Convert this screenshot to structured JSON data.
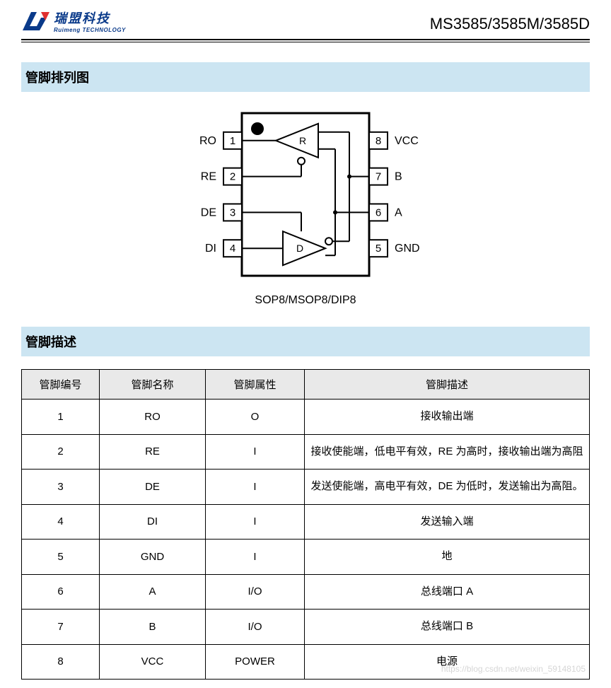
{
  "header": {
    "logo_cn": "瑞盟科技",
    "logo_en": "Ruimeng TECHNOLOGY",
    "part_number": "MS3585/3585M/3585D"
  },
  "sections": {
    "pinout_title": "管脚排列图",
    "pindesc_title": "管脚描述"
  },
  "diagram": {
    "caption": "SOP8/MSOP8/DIP8",
    "left_pins": [
      {
        "num": "1",
        "label": "RO"
      },
      {
        "num": "2",
        "label": "RE"
      },
      {
        "num": "3",
        "label": "DE"
      },
      {
        "num": "4",
        "label": "DI"
      }
    ],
    "right_pins": [
      {
        "num": "8",
        "label": "VCC"
      },
      {
        "num": "7",
        "label": "B"
      },
      {
        "num": "6",
        "label": "A"
      },
      {
        "num": "5",
        "label": "GND"
      }
    ],
    "r_label": "R",
    "d_label": "D",
    "colors": {
      "stroke": "#000000",
      "fill": "#ffffff",
      "dot": "#000000"
    }
  },
  "pin_table": {
    "headers": [
      "管脚编号",
      "管脚名称",
      "管脚属性",
      "管脚描述"
    ],
    "rows": [
      {
        "num": "1",
        "name": "RO",
        "attr": "O",
        "desc": "接收输出端"
      },
      {
        "num": "2",
        "name": "RE",
        "attr": "I",
        "desc": "接收使能端，低电平有效，RE 为高时，接收输出端为高阻"
      },
      {
        "num": "3",
        "name": "DE",
        "attr": "I",
        "desc": "发送使能端，高电平有效，DE 为低时，发送输出为高阻。"
      },
      {
        "num": "4",
        "name": "DI",
        "attr": "I",
        "desc": "发送输入端"
      },
      {
        "num": "5",
        "name": "GND",
        "attr": "I",
        "desc": "地"
      },
      {
        "num": "6",
        "name": "A",
        "attr": "I/O",
        "desc": "总线端口 A"
      },
      {
        "num": "7",
        "name": "B",
        "attr": "I/O",
        "desc": "总线端口 B"
      },
      {
        "num": "8",
        "name": "VCC",
        "attr": "POWER",
        "desc": "电源"
      }
    ]
  },
  "watermark": "https://blog.csdn.net/weixin_59148105"
}
